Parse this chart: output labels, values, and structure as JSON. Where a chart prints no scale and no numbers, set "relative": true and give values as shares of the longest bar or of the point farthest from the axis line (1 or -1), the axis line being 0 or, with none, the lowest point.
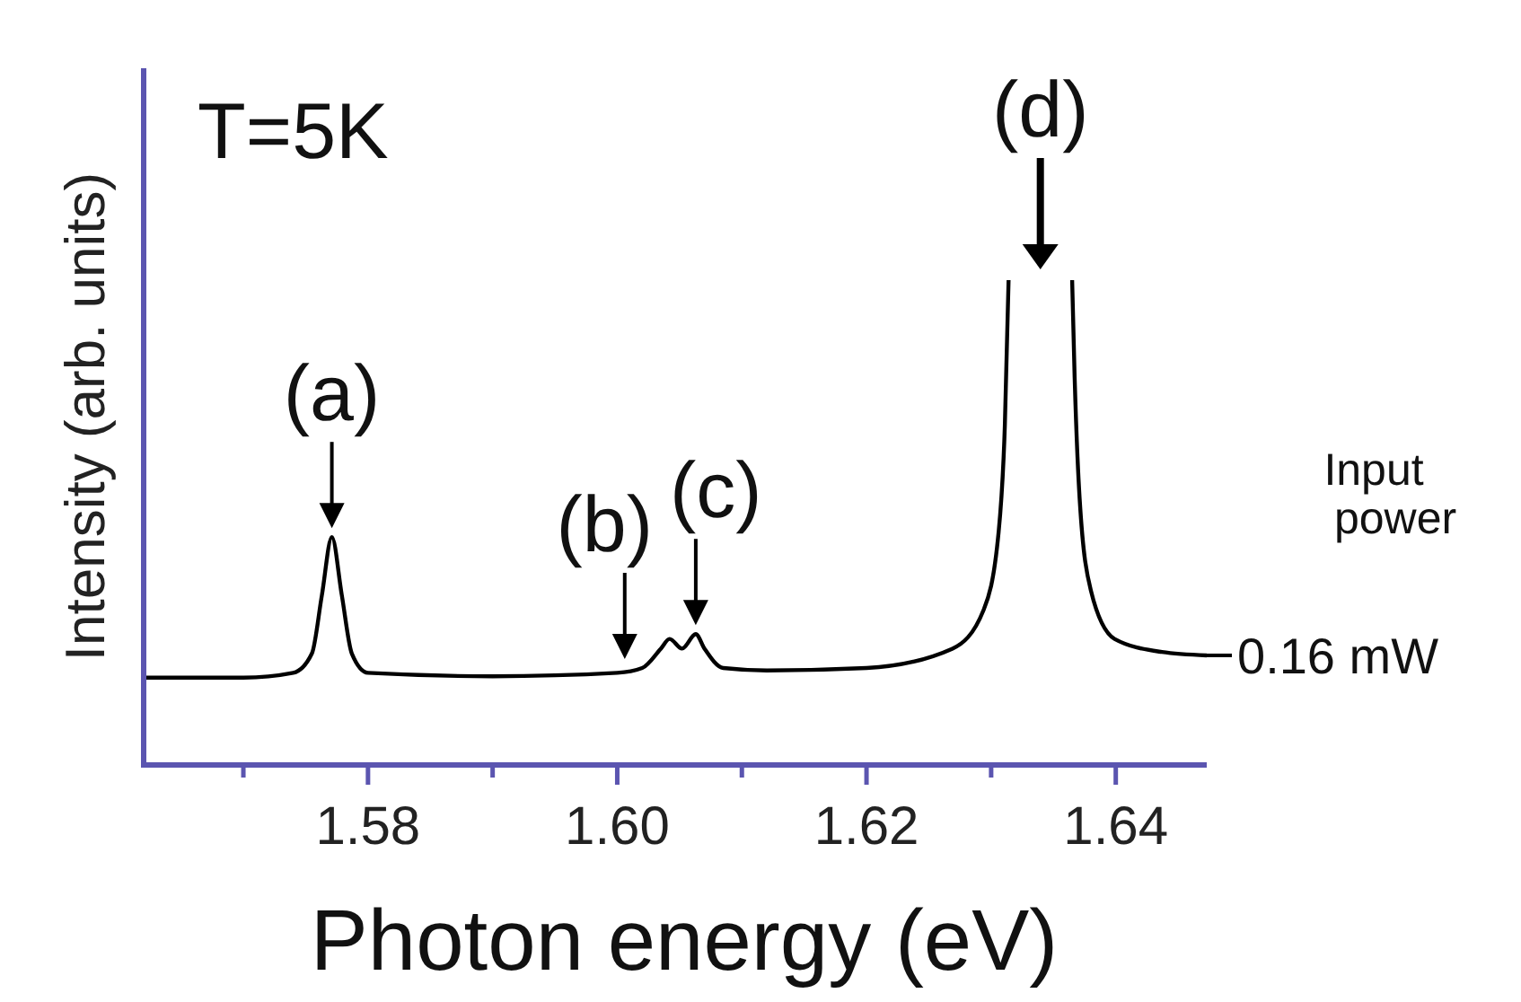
{
  "chart_data": {
    "type": "line",
    "relative": true,
    "xlabel": "Photon energy (eV)",
    "ylabel": "Intensity (arb. units)",
    "legend_title": "Input power",
    "xlim": [
      1.562,
      1.6473
    ],
    "xticks": [
      {
        "value": 1.57,
        "label": null
      },
      {
        "value": 1.58,
        "label": "1.58"
      },
      {
        "value": 1.59,
        "label": null
      },
      {
        "value": 1.6,
        "label": "1.60"
      },
      {
        "value": 1.61,
        "label": null
      },
      {
        "value": 1.62,
        "label": "1.62"
      },
      {
        "value": 1.63,
        "label": null
      },
      {
        "value": 1.64,
        "label": "1.64"
      }
    ],
    "grid": false,
    "legend": "right",
    "series": [
      {
        "name": "0.16 mW",
        "color": "#000000",
        "x": [
          1.562,
          1.57,
          1.574,
          1.5755,
          1.5763,
          1.5771,
          1.5779,
          1.5787,
          1.58,
          1.59,
          1.6,
          1.602,
          1.6035,
          1.6042,
          1.6052,
          1.6063,
          1.607,
          1.6085,
          1.612,
          1.62,
          1.6269,
          1.6294,
          1.6306,
          1.6311,
          1.6314,
          1.634,
          1.6365,
          1.6367,
          1.6371,
          1.638,
          1.6399,
          1.6437,
          1.6473
        ],
        "values": [
          0.18,
          0.18,
          0.19,
          0.23,
          0.35,
          0.47,
          0.35,
          0.23,
          0.19,
          0.183,
          0.19,
          0.2,
          0.24,
          0.26,
          0.24,
          0.27,
          0.24,
          0.2,
          0.195,
          0.2,
          0.24,
          0.32,
          0.48,
          0.7,
          1,
          null,
          1,
          0.8,
          0.55,
          0.36,
          0.26,
          0.233,
          0.226
        ]
      }
    ],
    "annotations": [
      "T=5K",
      {
        "text": "(a)",
        "x": 1.5771,
        "y": 0.47
      },
      {
        "text": "(b)",
        "x": 1.6006,
        "y": 0.2
      },
      {
        "text": "(c)",
        "x": 1.6063,
        "y": 0.27
      },
      "(d)"
    ]
  }
}
